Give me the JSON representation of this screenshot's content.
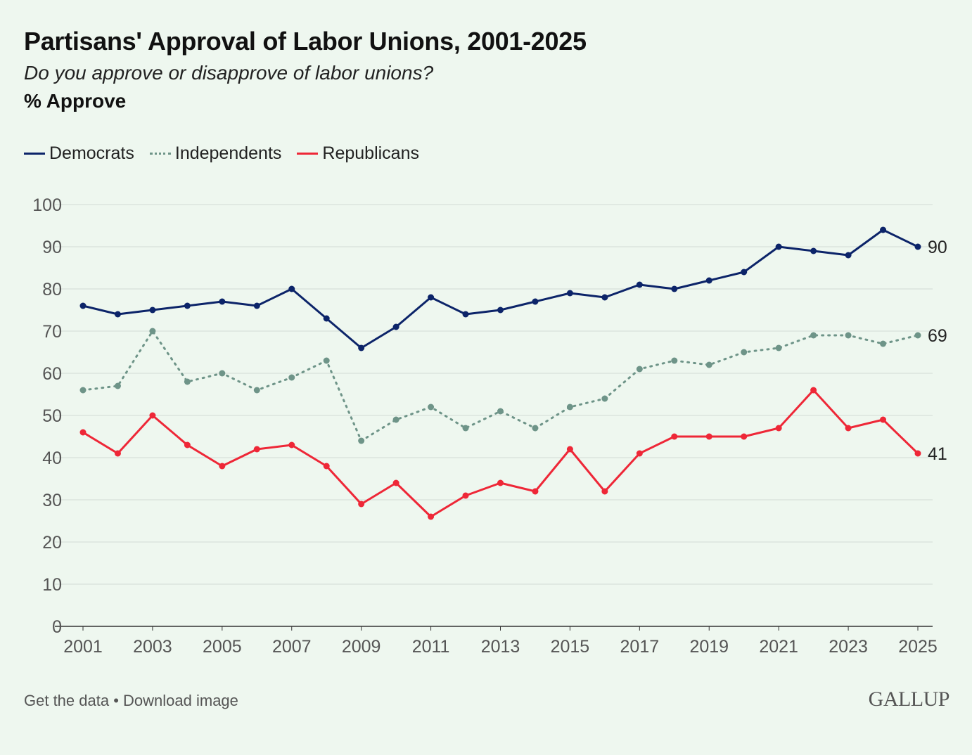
{
  "chart_data": {
    "type": "line",
    "title": "Partisans' Approval of Labor Unions, 2001-2025",
    "subtitle": "Do you approve or disapprove of labor unions?",
    "ylabel": "% Approve",
    "xlabel": "",
    "x": [
      2001,
      2002,
      2003,
      2004,
      2005,
      2006,
      2007,
      2008,
      2009,
      2010,
      2011,
      2012,
      2013,
      2014,
      2015,
      2016,
      2017,
      2018,
      2019,
      2020,
      2021,
      2022,
      2023,
      2024,
      2025
    ],
    "xticks": [
      "2001",
      "2003",
      "2005",
      "2007",
      "2009",
      "2011",
      "2013",
      "2015",
      "2017",
      "2019",
      "2021",
      "2023",
      "2025"
    ],
    "yticks": [
      "0",
      "10",
      "20",
      "30",
      "40",
      "50",
      "60",
      "70",
      "80",
      "90",
      "100"
    ],
    "ylim": [
      0,
      100
    ],
    "grid": true,
    "legend_position": "top-left",
    "series": [
      {
        "name": "Democrats",
        "color": "#0c2469",
        "style": "solid",
        "end_label": "90",
        "values": [
          76,
          74,
          75,
          76,
          77,
          76,
          80,
          73,
          66,
          71,
          78,
          74,
          75,
          77,
          79,
          78,
          81,
          80,
          82,
          84,
          90,
          89,
          88,
          94,
          90
        ]
      },
      {
        "name": "Independents",
        "color": "#6e9488",
        "style": "dotted",
        "end_label": "69",
        "values": [
          56,
          57,
          70,
          58,
          60,
          56,
          59,
          63,
          44,
          49,
          52,
          47,
          51,
          47,
          52,
          54,
          61,
          63,
          62,
          65,
          66,
          69,
          69,
          67,
          69
        ]
      },
      {
        "name": "Republicans",
        "color": "#ee2737",
        "style": "solid",
        "end_label": "41",
        "values": [
          46,
          41,
          50,
          43,
          38,
          42,
          43,
          38,
          29,
          34,
          26,
          31,
          34,
          32,
          42,
          32,
          41,
          45,
          45,
          45,
          47,
          56,
          47,
          49,
          41
        ]
      }
    ]
  },
  "footer": {
    "get_data": "Get the data",
    "separator": " • ",
    "download": "Download image"
  },
  "logo": "GALLUP"
}
